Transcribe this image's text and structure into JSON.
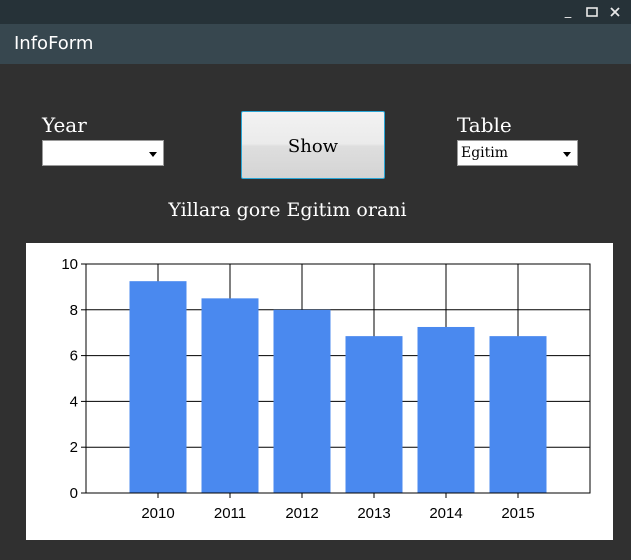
{
  "window": {
    "title": "InfoForm",
    "controls": [
      "minimize-icon",
      "maximize-icon",
      "close-icon"
    ]
  },
  "form": {
    "year_label": "Year",
    "year_value": "",
    "show_label": "Show",
    "table_label": "Table",
    "table_value": "Egitim",
    "heading": "Yillara gore Egitim orani"
  },
  "colors": {
    "bar": "#4a89ef",
    "background": "#303030",
    "titlebar": "#37474f"
  },
  "chart_data": {
    "type": "bar",
    "categories": [
      "2010",
      "2011",
      "2012",
      "2013",
      "2014",
      "2015"
    ],
    "values": [
      9.25,
      8.5,
      8.0,
      6.85,
      7.25,
      6.85
    ],
    "ylim": [
      0,
      10
    ],
    "yticks": [
      "0",
      "2",
      "4",
      "6",
      "8",
      "10"
    ],
    "grid": true,
    "title": "",
    "xlabel": "",
    "ylabel": ""
  }
}
